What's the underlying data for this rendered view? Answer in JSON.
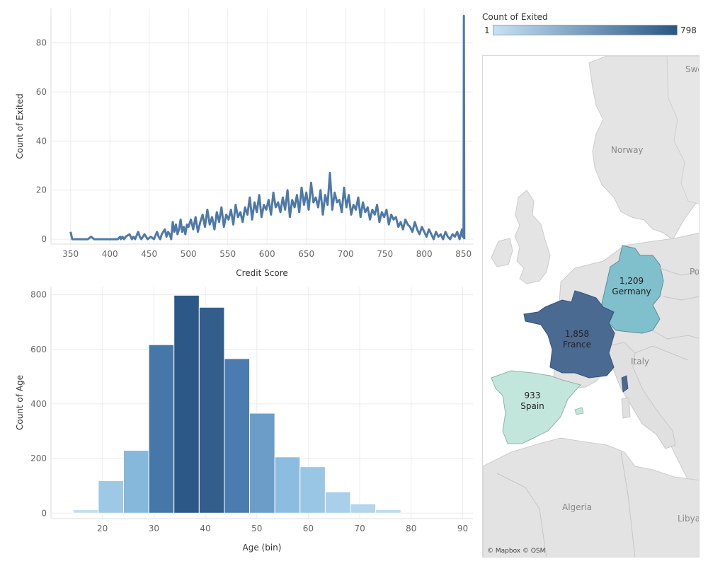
{
  "chart_data": [
    {
      "type": "line",
      "xlabel": "Credit Score",
      "ylabel": "Count of Exited",
      "xlim": [
        325,
        862
      ],
      "ylim": [
        -2,
        94
      ],
      "xticks": [
        350,
        400,
        450,
        500,
        550,
        600,
        650,
        700,
        750,
        800,
        850
      ],
      "yticks": [
        0,
        20,
        40,
        60,
        80
      ],
      "grid": true,
      "color": "#4e79a7",
      "x": [
        350,
        352,
        372,
        376,
        380,
        390,
        400,
        405,
        410,
        413,
        414,
        416,
        418,
        420,
        425,
        428,
        430,
        432,
        436,
        438,
        440,
        444,
        448,
        452,
        456,
        460,
        462,
        464,
        466,
        470,
        472,
        474,
        476,
        478,
        480,
        482,
        484,
        486,
        488,
        490,
        492,
        494,
        496,
        498,
        500,
        503,
        506,
        509,
        512,
        515,
        518,
        521,
        524,
        527,
        530,
        533,
        536,
        539,
        542,
        545,
        548,
        551,
        554,
        557,
        560,
        563,
        566,
        569,
        572,
        575,
        578,
        581,
        584,
        587,
        590,
        593,
        596,
        599,
        602,
        605,
        608,
        611,
        614,
        617,
        620,
        623,
        626,
        629,
        632,
        635,
        638,
        641,
        644,
        647,
        650,
        653,
        656,
        659,
        662,
        665,
        668,
        671,
        674,
        677,
        680,
        683,
        686,
        689,
        692,
        695,
        698,
        701,
        704,
        707,
        710,
        713,
        716,
        719,
        722,
        725,
        728,
        731,
        734,
        737,
        740,
        743,
        746,
        749,
        752,
        755,
        758,
        761,
        764,
        767,
        770,
        773,
        776,
        779,
        782,
        785,
        788,
        791,
        794,
        797,
        800,
        803,
        806,
        809,
        812,
        815,
        818,
        821,
        824,
        827,
        830,
        833,
        836,
        839,
        842,
        845,
        848,
        849,
        850,
        850.5,
        851
      ],
      "y": [
        3,
        0,
        0,
        1,
        0,
        0,
        0,
        0,
        0,
        1,
        0,
        1,
        0,
        1,
        2,
        0,
        1,
        0,
        3,
        1,
        0,
        2,
        0,
        1,
        0,
        3,
        1,
        0,
        2,
        4,
        1,
        3,
        2,
        0,
        7,
        3,
        6,
        2,
        4,
        8,
        3,
        5,
        2,
        6,
        5,
        8,
        4,
        9,
        3,
        7,
        10,
        5,
        12,
        6,
        9,
        4,
        11,
        7,
        13,
        5,
        10,
        8,
        12,
        6,
        14,
        9,
        11,
        7,
        13,
        10,
        17,
        8,
        15,
        11,
        18,
        9,
        14,
        12,
        16,
        10,
        19,
        13,
        15,
        11,
        17,
        12,
        20,
        9,
        16,
        13,
        18,
        11,
        21,
        14,
        19,
        12,
        23,
        15,
        17,
        13,
        20,
        10,
        18,
        14,
        27,
        12,
        19,
        15,
        16,
        11,
        21,
        13,
        18,
        10,
        14,
        12,
        17,
        9,
        15,
        11,
        13,
        8,
        12,
        10,
        14,
        7,
        11,
        9,
        12,
        6,
        10,
        8,
        9,
        5,
        7,
        4,
        8,
        6,
        5,
        3,
        7,
        4,
        2,
        5,
        3,
        1,
        4,
        2,
        0,
        3,
        1,
        2,
        0,
        3,
        1,
        0,
        2,
        1,
        3,
        0,
        4,
        1,
        1,
        91,
        0
      ]
    },
    {
      "type": "bar",
      "xlabel": "Age (bin)",
      "ylabel": "Count of Age",
      "xlim": [
        10,
        92
      ],
      "ylim": [
        -20,
        830
      ],
      "xticks": [
        20,
        30,
        40,
        50,
        60,
        70,
        80,
        90
      ],
      "yticks": [
        0,
        200,
        400,
        600,
        800
      ],
      "bin_width": 4.9,
      "bins": [
        14.3,
        19.2,
        24.1,
        29.0,
        33.9,
        38.8,
        43.7,
        48.6,
        53.5,
        58.4,
        63.3,
        68.2,
        73.1
      ],
      "values": [
        13,
        119,
        230,
        617,
        798,
        754,
        566,
        366,
        206,
        170,
        78,
        34,
        13
      ],
      "colors": [
        "#c5def0",
        "#9ec9e6",
        "#86b8dc",
        "#4677a9",
        "#2b5887",
        "#335e8c",
        "#4b7cb0",
        "#6c9dc8",
        "#8cbde0",
        "#99c6e4",
        "#a8d0ea",
        "#b3d6ed",
        "#bbdbf0"
      ],
      "grid": true
    }
  ],
  "legend": {
    "title": "Count of Exited",
    "min_label": "1",
    "max_label": "798",
    "color_from": "#c8e1f3",
    "color_to": "#2a5783"
  },
  "map": {
    "credit": "© Mapbox © OSM",
    "places": {
      "sweden": "Swe",
      "norway": "Norway",
      "poland": "Po",
      "italy": "Italy",
      "algeria": "Algeria",
      "libya": "Libya"
    },
    "countries": [
      {
        "name": "Germany",
        "value": "1,209",
        "color": "#80bfcc"
      },
      {
        "name": "France",
        "value": "1,858",
        "color": "#4b6a92"
      },
      {
        "name": "Spain",
        "value": "933",
        "color": "#c3e6dc"
      }
    ]
  }
}
